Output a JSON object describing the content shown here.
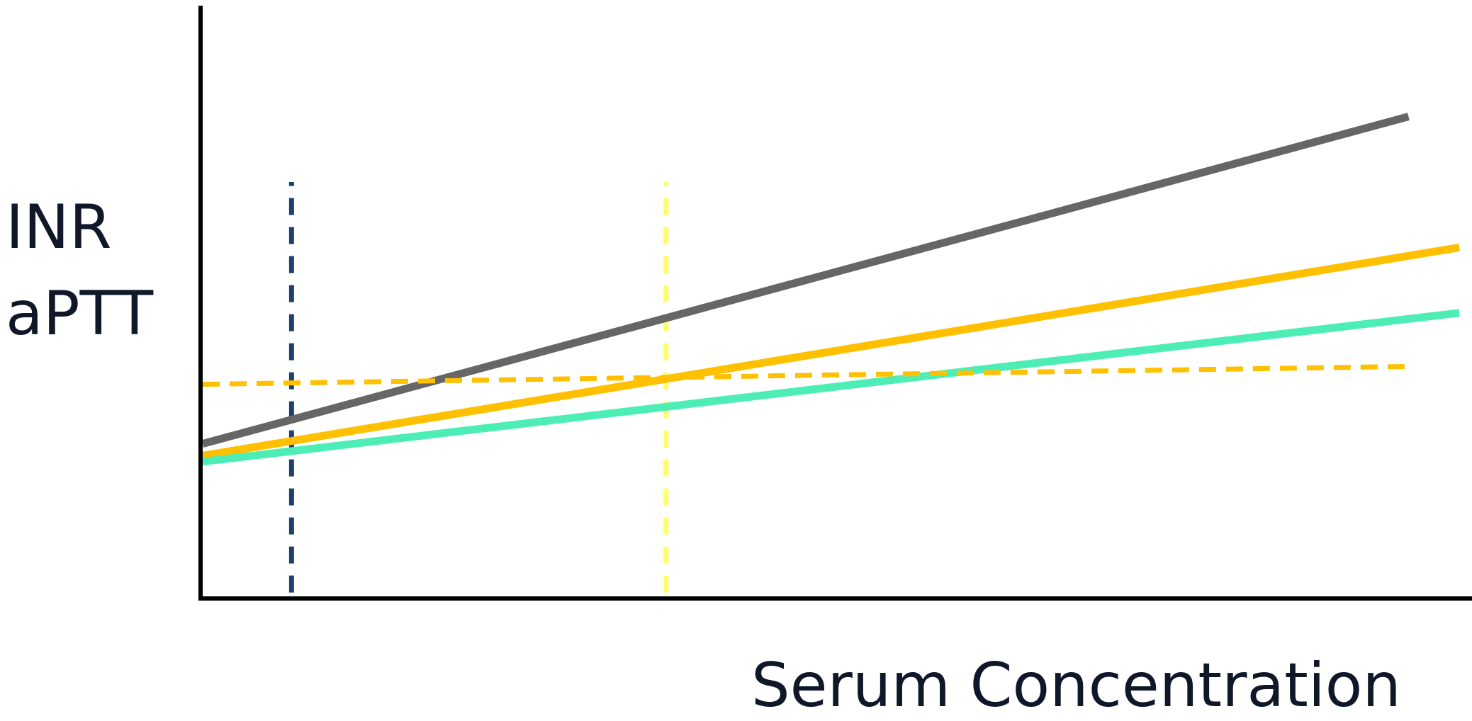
{
  "chart_data": {
    "type": "line",
    "title": "",
    "xlabel": "Serum Concentration",
    "ylabel_lines": [
      "INR",
      "aPTT"
    ],
    "xlim": [
      0,
      100
    ],
    "ylim": [
      0,
      100
    ],
    "grid": false,
    "legend": "none",
    "series": [
      {
        "color": "#666666",
        "style": "solid",
        "x": [
          0,
          95
        ],
        "y": [
          26,
          81
        ]
      },
      {
        "color": "#FFC000",
        "style": "solid",
        "x": [
          0,
          99
        ],
        "y": [
          24,
          59
        ]
      },
      {
        "color": "#4CEEB5",
        "style": "solid",
        "x": [
          0,
          99
        ],
        "y": [
          23,
          48
        ]
      },
      {
        "color": "#FFC000",
        "style": "dashed",
        "x": [
          0,
          95
        ],
        "y": [
          36,
          39
        ]
      }
    ],
    "vlines": [
      {
        "color": "#1F3F6E",
        "style": "dashed",
        "x": 7,
        "y": [
          1,
          70
        ]
      },
      {
        "color": "#FFFF66",
        "style": "dashed",
        "x": 36.5,
        "y": [
          1,
          70
        ]
      }
    ]
  }
}
